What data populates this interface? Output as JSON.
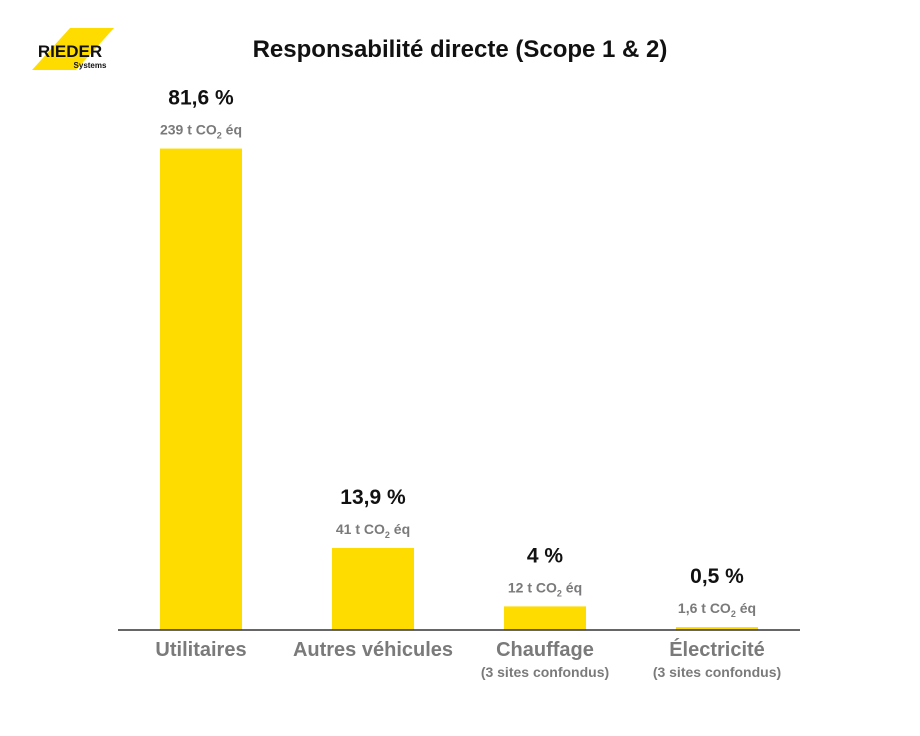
{
  "brand": {
    "name": "RIEDER",
    "tagline": "Systems",
    "color": "#FFDC00"
  },
  "chart_data": {
    "type": "bar",
    "title": "Responsabilité directe (Scope 1 & 2)",
    "bar_color": "#FFDC00",
    "categories": [
      "Utilitaires",
      "Autres véhicules",
      "Chauffage",
      "Électricité"
    ],
    "category_notes": [
      "",
      "",
      "(3 sites confondus)",
      "(3 sites confondus)"
    ],
    "values": [
      81.6,
      13.9,
      4,
      0.5
    ],
    "value_labels": [
      "81,6 %",
      "13,9 %",
      "4 %",
      "0,5 %"
    ],
    "emissions": [
      {
        "value": "239 t CO",
        "sub": "2",
        "unit": " éq"
      },
      {
        "value": "41 t CO",
        "sub": "2",
        "unit": " éq"
      },
      {
        "value": "12 t CO",
        "sub": "2",
        "unit": " éq"
      },
      {
        "value": "1,6 t CO",
        "sub": "2",
        "unit": " éq"
      }
    ],
    "ylim": [
      0,
      100
    ],
    "grid": false,
    "legend": "none"
  }
}
